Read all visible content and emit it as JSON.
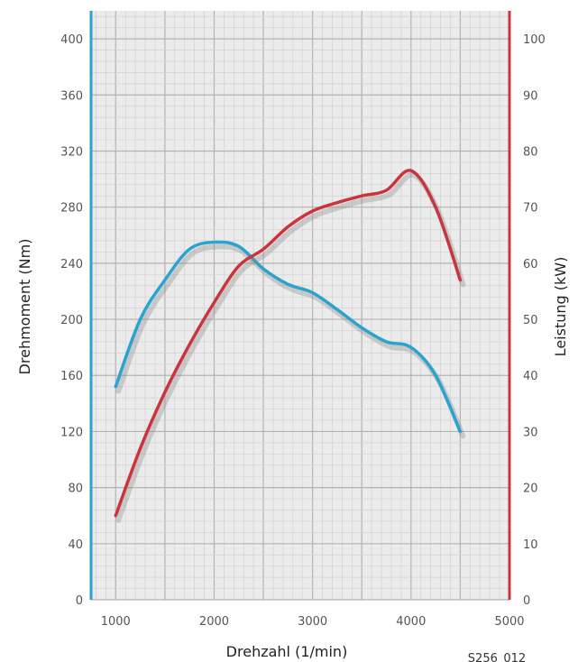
{
  "chart_data": {
    "type": "line",
    "xlabel": "Drehzahl (1/min)",
    "ylabel_left": "Drehmoment (Nm)",
    "ylabel_right": "Leistung (kW)",
    "xlim": [
      750,
      5000
    ],
    "ylim_left": [
      0,
      420
    ],
    "ylim_right": [
      0,
      105
    ],
    "x_ticks": [
      "1000",
      "2000",
      "3000",
      "4000",
      "5000"
    ],
    "y_ticks_left": [
      "0",
      "40",
      "80",
      "120",
      "160",
      "200",
      "240",
      "280",
      "320",
      "360",
      "400"
    ],
    "y_ticks_right": [
      "0",
      "10",
      "20",
      "30",
      "40",
      "50",
      "60",
      "70",
      "80",
      "90",
      "100"
    ],
    "grid": true,
    "series": [
      {
        "axis": "left",
        "color": "#2aa3cf",
        "points": [
          [
            1000,
            152
          ],
          [
            1250,
            200
          ],
          [
            1500,
            228
          ],
          [
            1750,
            250
          ],
          [
            2000,
            255
          ],
          [
            2250,
            252
          ],
          [
            2500,
            236
          ],
          [
            2750,
            225
          ],
          [
            3000,
            219
          ],
          [
            3250,
            207
          ],
          [
            3500,
            194
          ],
          [
            3750,
            184
          ],
          [
            4000,
            180
          ],
          [
            4250,
            160
          ],
          [
            4500,
            120
          ]
        ]
      },
      {
        "axis": "right",
        "color": "#c9353c",
        "points": [
          [
            1000,
            15
          ],
          [
            1250,
            27
          ],
          [
            1500,
            37
          ],
          [
            1750,
            45.5
          ],
          [
            2000,
            53
          ],
          [
            2250,
            59.5
          ],
          [
            2500,
            62.5
          ],
          [
            2750,
            66.5
          ],
          [
            3000,
            69.3
          ],
          [
            3250,
            70.8
          ],
          [
            3500,
            72
          ],
          [
            3750,
            73
          ],
          [
            4000,
            76.5
          ],
          [
            4250,
            70
          ],
          [
            4500,
            57
          ]
        ]
      }
    ]
  },
  "reference_code": "S256_012"
}
